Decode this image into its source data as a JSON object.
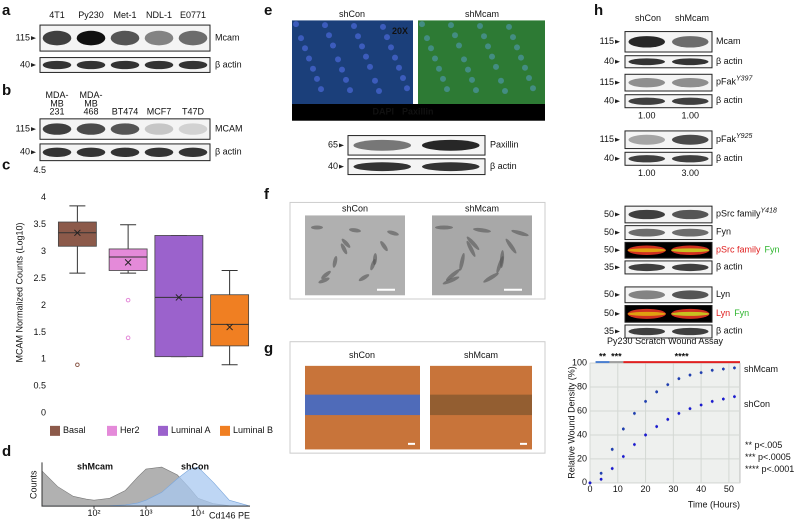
{
  "figure": {
    "a": {
      "letter": "a",
      "lanes": [
        "4T1",
        "Py230",
        "Met-1",
        "NDL-1",
        "E0771"
      ],
      "rows": [
        {
          "marker": "115",
          "label": "Mcam"
        },
        {
          "marker": "40",
          "label": "β actin"
        }
      ]
    },
    "b": {
      "letter": "b",
      "lanes": [
        [
          "MDA-",
          "MB",
          "231"
        ],
        [
          "MDA-",
          "MB",
          "468"
        ],
        [
          "BT474"
        ],
        [
          "MCF7"
        ],
        [
          "T47D"
        ]
      ],
      "rows": [
        {
          "marker": "115",
          "label": "MCAM"
        },
        {
          "marker": "40",
          "label": "β actin"
        }
      ]
    },
    "c": {
      "letter": "c"
    },
    "d": {
      "letter": "d"
    },
    "e": {
      "letter": "e",
      "columns": [
        "shCon",
        "shMcam"
      ],
      "magnification": "20X",
      "stains": [
        {
          "text": "DAPI",
          "color": "#6a7cf0"
        },
        {
          "text": "Paxillin",
          "color": "#3fc03f"
        }
      ],
      "rows": [
        {
          "marker": "65",
          "label": "Paxillin"
        },
        {
          "marker": "40",
          "label": "β actin"
        }
      ]
    },
    "f": {
      "letter": "f",
      "columns": [
        "shCon",
        "shMcam"
      ]
    },
    "g": {
      "letter": "g",
      "columns": [
        "shCon",
        "shMcam"
      ]
    },
    "h": {
      "letter": "h",
      "columns": [
        "shCon",
        "shMcam"
      ],
      "groups": [
        {
          "rows": [
            {
              "marker": "115",
              "label": [
                {
                  "text": "Mcam"
                }
              ]
            },
            {
              "marker": "40",
              "label": [
                {
                  "text": "β actin"
                }
              ]
            }
          ]
        },
        {
          "rows": [
            {
              "marker": "115",
              "label": [
                {
                  "text": "pFak"
                },
                {
                  "text": "Y397",
                  "sup": true
                }
              ]
            },
            {
              "marker": "40",
              "label": [
                {
                  "text": "β actin"
                }
              ]
            }
          ],
          "quant": [
            "1.00",
            "1.00"
          ]
        },
        {
          "rows": [
            {
              "marker": "115",
              "label": [
                {
                  "text": "pFak"
                },
                {
                  "text": "Y925",
                  "sup": true
                }
              ]
            },
            {
              "marker": "40",
              "label": [
                {
                  "text": "β actin"
                }
              ]
            }
          ],
          "quant": [
            "1.00",
            "3.00"
          ]
        },
        {
          "rows": [
            {
              "marker": "50",
              "label": [
                {
                  "text": "pSrc family"
                },
                {
                  "text": "Y418",
                  "sup": true
                }
              ]
            },
            {
              "marker": "50",
              "label": [
                {
                  "text": "Fyn"
                }
              ]
            },
            {
              "marker": "50",
              "merge": true,
              "label": [
                {
                  "text": "pSrc family",
                  "color": "#e02020"
                },
                {
                  "text": "Fyn",
                  "color": "#2db52d"
                }
              ]
            },
            {
              "marker": "35",
              "label": [
                {
                  "text": "β actin"
                }
              ]
            }
          ]
        },
        {
          "rows": [
            {
              "marker": "50",
              "label": [
                {
                  "text": "Lyn"
                }
              ]
            },
            {
              "marker": "50",
              "merge": true,
              "label": [
                {
                  "text": "Lyn",
                  "color": "#e02020"
                },
                {
                  "text": "Fyn",
                  "color": "#2db52d"
                }
              ]
            },
            {
              "marker": "35",
              "label": [
                {
                  "text": "β actin"
                }
              ]
            }
          ]
        }
      ]
    }
  },
  "chart_data": [
    {
      "type": "box",
      "ylabel": "MCAM Normalized Counts (Log10)",
      "categories": [
        "Basal",
        "Her2",
        "Luminal A",
        "Luminal B"
      ],
      "colors": [
        "#8c5a4a",
        "#e48ad9",
        "#9b62cc",
        "#f07f22"
      ],
      "boxes": [
        {
          "min": 2.6,
          "q1": 3.1,
          "median": 3.35,
          "q3": 3.55,
          "max": 3.85,
          "mean": 3.35,
          "outliers": [
            0.9
          ]
        },
        {
          "min": 2.6,
          "q1": 2.65,
          "median": 2.9,
          "q3": 3.05,
          "max": 3.5,
          "mean": 2.8,
          "outliers": [
            2.1,
            1.4
          ]
        },
        {
          "min": 1.05,
          "q1": 1.05,
          "median": 2.15,
          "q3": 3.3,
          "max": 3.3,
          "mean": 2.15,
          "outliers": []
        },
        {
          "min": 0.9,
          "q1": 1.25,
          "median": 1.65,
          "q3": 2.2,
          "max": 2.65,
          "mean": 1.6,
          "outliers": []
        }
      ],
      "ylim": [
        0,
        4.5
      ],
      "yticks": [
        0,
        0.5,
        1,
        1.5,
        2,
        2.5,
        3,
        3.5,
        4,
        4.5
      ]
    },
    {
      "type": "area",
      "ylabel": "Counts",
      "xlabel": "Cd146 PE",
      "log_x": true,
      "x": [
        10,
        20,
        40,
        70,
        100,
        200,
        400,
        700,
        1000,
        2000,
        4000,
        7000,
        10000,
        20000,
        40000,
        100000
      ],
      "series": [
        {
          "name": "shMcam",
          "color": "#a8a8a8",
          "label_color": "#9a9a9a",
          "values": [
            90,
            50,
            25,
            18,
            15,
            20,
            40,
            75,
            95,
            100,
            80,
            45,
            20,
            6,
            1,
            0
          ]
        },
        {
          "name": "shCon",
          "color": "#a8c8f0",
          "label_color": "#5b9bd5",
          "values": [
            0,
            0,
            0,
            0,
            0,
            1,
            3,
            8,
            15,
            35,
            70,
            95,
            100,
            60,
            15,
            0
          ]
        }
      ],
      "xlim": [
        10,
        100000
      ],
      "ylim": [
        0,
        100
      ],
      "xticks": [
        {
          "value": 100,
          "label": "10²"
        },
        {
          "value": 1000,
          "label": "10³"
        },
        {
          "value": 10000,
          "label": "10⁴"
        }
      ]
    },
    {
      "type": "line",
      "title": "Py230 Scratch Wound Assay",
      "xlabel": "Time (Hours)",
      "ylabel": "Relative Wound Density (%)",
      "x": [
        0,
        4,
        8,
        12,
        16,
        20,
        24,
        28,
        32,
        36,
        40,
        44,
        48,
        52
      ],
      "series": [
        {
          "name": "shMcam",
          "color": "#1f3fb0",
          "label_color": "#1f4e9a",
          "values": [
            0,
            8,
            28,
            45,
            58,
            68,
            76,
            82,
            87,
            90,
            92,
            94,
            95,
            96
          ]
        },
        {
          "name": "shCon",
          "color": "#1a1ad0",
          "label_color": "#1a1ad0",
          "values": [
            0,
            3,
            12,
            22,
            32,
            40,
            47,
            53,
            58,
            62,
            65,
            68,
            70,
            72
          ]
        }
      ],
      "xlim": [
        0,
        54
      ],
      "ylim": [
        0,
        100
      ],
      "xticks": [
        0,
        10,
        20,
        30,
        40,
        50
      ],
      "yticks": [
        0,
        20,
        40,
        60,
        80,
        100
      ],
      "grid": true,
      "significance": [
        {
          "label": "**",
          "color": "#4a7fd0",
          "x": [
            2,
            7
          ]
        },
        {
          "label": "***",
          "color": "#a0a0a0",
          "x": [
            7,
            12
          ]
        },
        {
          "label": "****",
          "color": "#e02020",
          "x": [
            12,
            54
          ]
        }
      ],
      "pvalues": [
        {
          "text": "** p<.005",
          "color": "#4a7fd0"
        },
        {
          "text": "*** p<.0005",
          "color": "#a0a0a0"
        },
        {
          "text": "**** p<.0001",
          "color": "#e02020"
        }
      ]
    }
  ]
}
